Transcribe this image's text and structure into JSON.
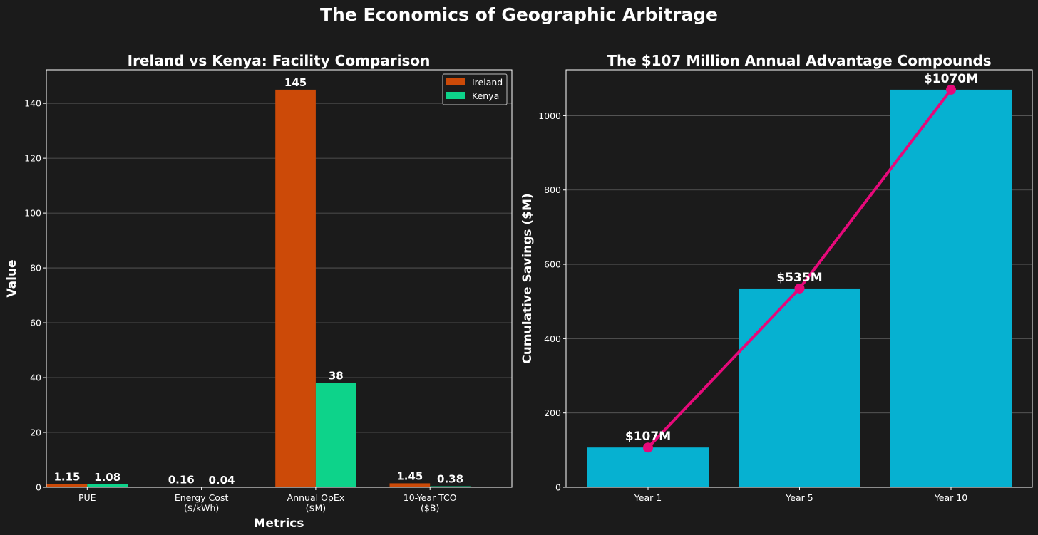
{
  "figure_title": "The Economics of Geographic Arbitrage",
  "colors": {
    "background": "#1b1b1b",
    "ireland": "#cc4a08",
    "kenya": "#0dd38a",
    "savings_bar": "#06b1d1",
    "savings_line": "#e6097a",
    "grid": "#5c5c5c",
    "axis": "#ffffff"
  },
  "chart_data": [
    {
      "type": "bar",
      "title": "Ireland vs Kenya: Facility Comparison",
      "xlabel": "Metrics",
      "ylabel": "Value",
      "categories": [
        [
          "PUE"
        ],
        [
          "Energy Cost",
          "($/kWh)"
        ],
        [
          "Annual OpEx",
          "($M)"
        ],
        [
          "10-Year TCO",
          "($B)"
        ]
      ],
      "series": [
        {
          "name": "Ireland",
          "color_key": "ireland",
          "values": [
            1.15,
            0.16,
            145,
            1.45
          ],
          "labels": [
            "1.15",
            "0.16",
            "145",
            "1.45"
          ]
        },
        {
          "name": "Kenya",
          "color_key": "kenya",
          "values": [
            1.08,
            0.04,
            38,
            0.38
          ],
          "labels": [
            "1.08",
            "0.04",
            "38",
            "0.38"
          ]
        }
      ],
      "ylim": [
        0,
        152.25
      ],
      "yticks": [
        0,
        20,
        40,
        60,
        80,
        100,
        120,
        140
      ],
      "grid": "y",
      "legend": "top-right"
    },
    {
      "type": "bar+line",
      "title": "The $107 Million Annual Advantage Compounds",
      "xlabel": "",
      "ylabel": "Cumulative Savings ($M)",
      "categories": [
        "Year 1",
        "Year 5",
        "Year 10"
      ],
      "values": [
        107,
        535,
        1070
      ],
      "labels": [
        "$107M",
        "$535M",
        "$1070M"
      ],
      "ylim": [
        0,
        1123.5
      ],
      "yticks": [
        0,
        200,
        400,
        600,
        800,
        1000
      ],
      "grid": "y"
    }
  ]
}
